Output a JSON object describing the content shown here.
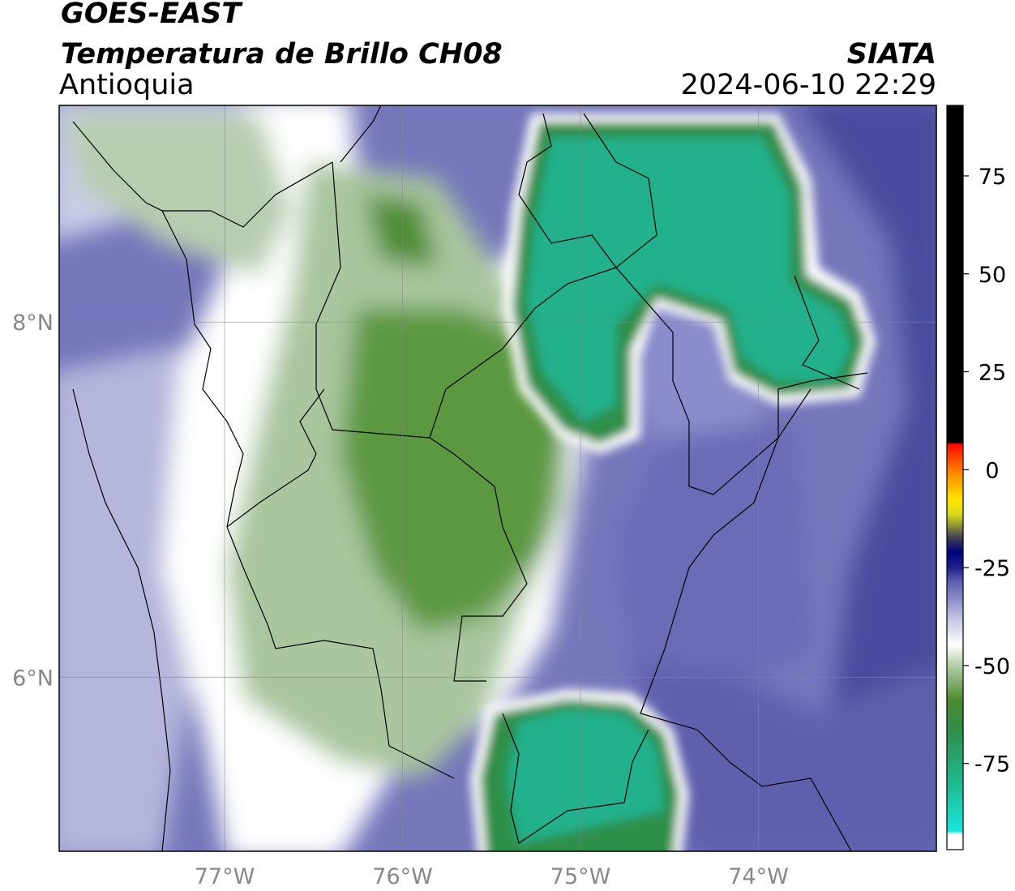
{
  "header": {
    "title": "GOES-EAST",
    "subtitle": "Temperatura de Brillo CH08",
    "region": "Antioquia",
    "source": "SIATA",
    "timestamp": "2024-06-10 22:29"
  },
  "map": {
    "lon_range": [
      -77.93,
      -73.0
    ],
    "lat_range": [
      5.02,
      9.22
    ],
    "lon_ticks": [
      {
        "value": -77,
        "label": "77°W"
      },
      {
        "value": -76,
        "label": "76°W"
      },
      {
        "value": -75,
        "label": "75°W"
      },
      {
        "value": -74,
        "label": "74°W"
      }
    ],
    "lat_ticks": [
      {
        "value": 8,
        "label": "8°N"
      },
      {
        "value": 6,
        "label": "6°N"
      }
    ]
  },
  "colorbar": {
    "range": [
      -97,
      93
    ],
    "ticks": [
      75,
      50,
      25,
      0,
      -25,
      -50,
      -75
    ]
  }
}
